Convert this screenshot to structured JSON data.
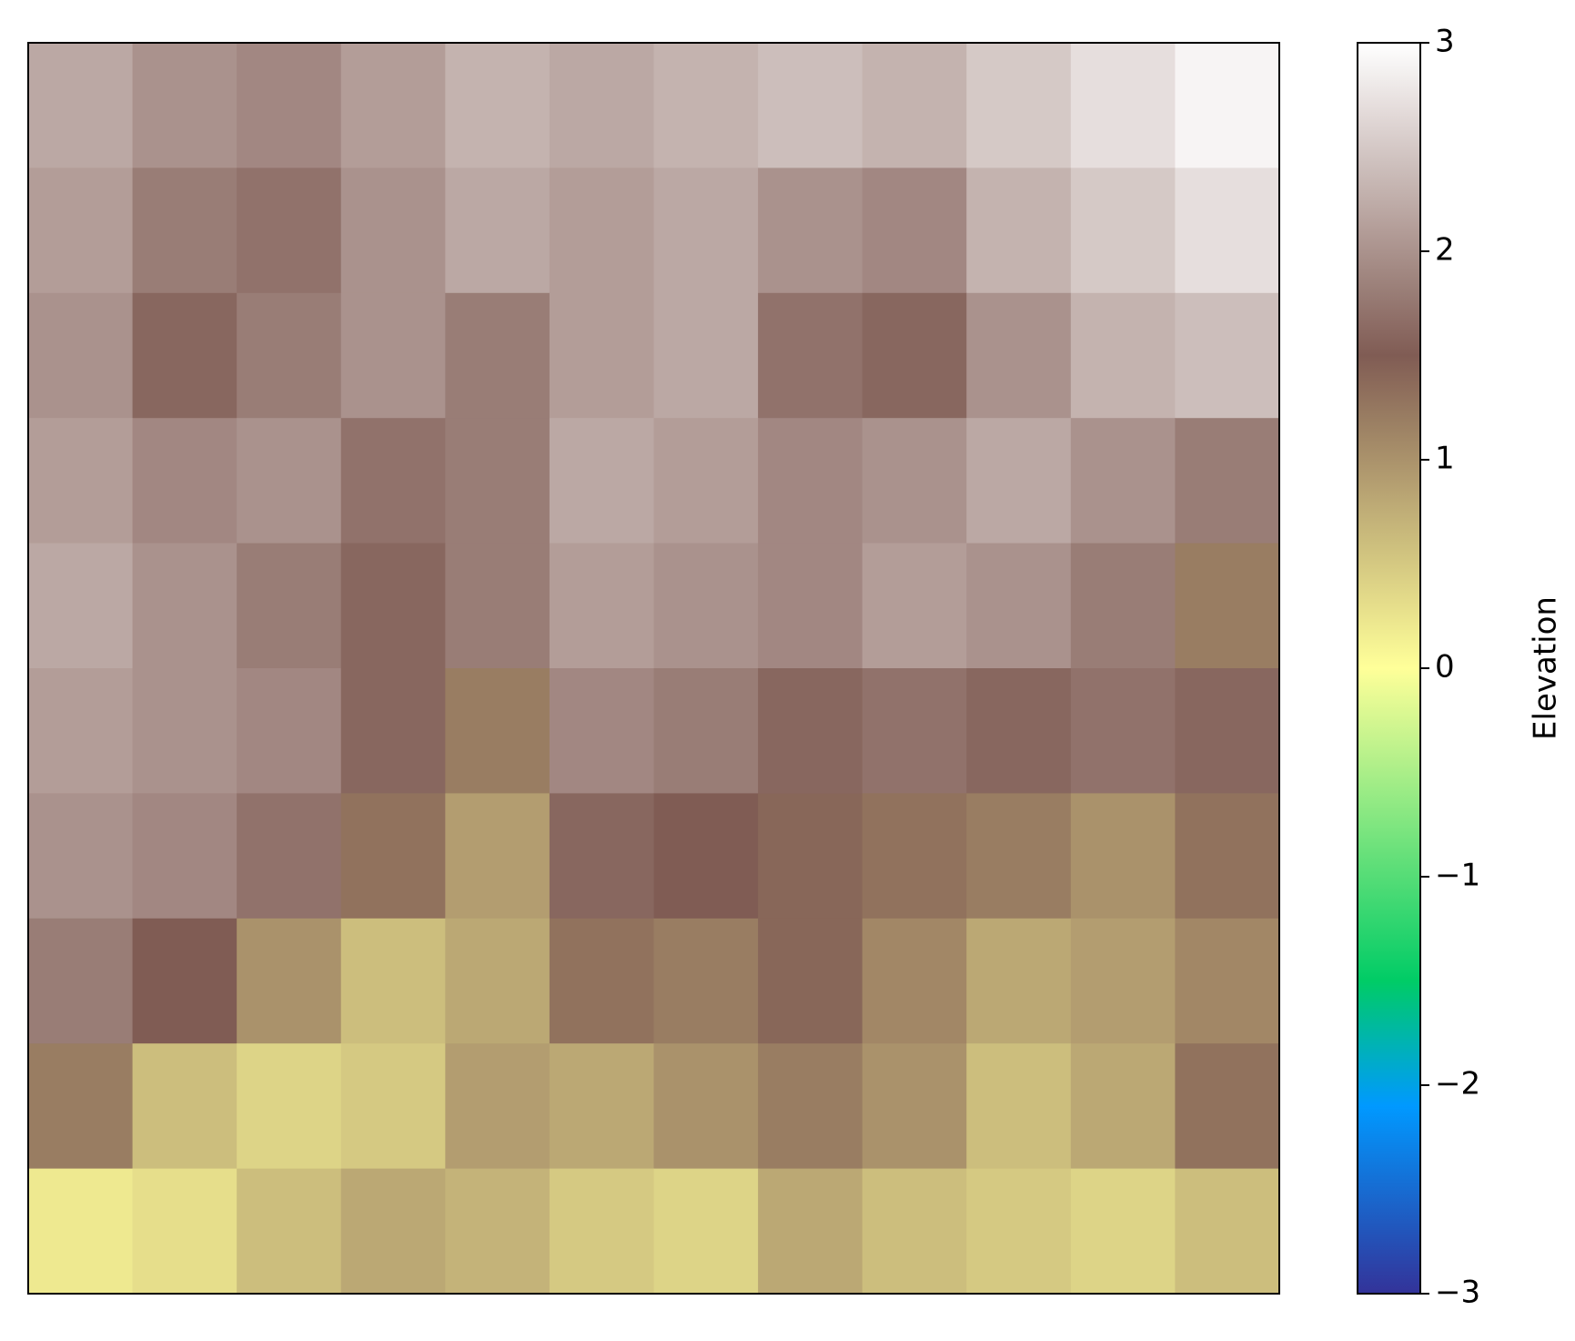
{
  "chart_data": {
    "type": "heatmap",
    "colormap": "terrain",
    "z": [
      [
        2.2,
        2.0,
        1.9,
        2.1,
        2.3,
        2.2,
        2.3,
        2.4,
        2.3,
        2.5,
        2.7,
        2.9
      ],
      [
        2.1,
        1.8,
        1.7,
        2.0,
        2.2,
        2.1,
        2.2,
        2.0,
        1.9,
        2.3,
        2.5,
        2.7
      ],
      [
        2.0,
        1.6,
        1.8,
        2.0,
        1.8,
        2.1,
        2.2,
        1.7,
        1.6,
        2.0,
        2.3,
        2.4
      ],
      [
        2.1,
        1.9,
        2.0,
        1.7,
        1.8,
        2.2,
        2.1,
        1.9,
        2.0,
        2.2,
        2.0,
        1.8
      ],
      [
        2.2,
        2.0,
        1.8,
        1.6,
        1.8,
        2.1,
        2.0,
        1.9,
        2.1,
        2.0,
        1.8,
        1.2
      ],
      [
        2.1,
        2.0,
        1.9,
        1.6,
        1.2,
        1.9,
        1.8,
        1.6,
        1.7,
        1.6,
        1.7,
        1.6
      ],
      [
        2.0,
        1.9,
        1.7,
        1.3,
        0.9,
        1.6,
        1.5,
        1.4,
        1.3,
        1.2,
        1.0,
        1.3
      ],
      [
        1.8,
        1.5,
        1.0,
        0.6,
        0.8,
        1.3,
        1.2,
        1.4,
        1.1,
        0.8,
        0.9,
        1.1
      ],
      [
        1.2,
        0.6,
        0.4,
        0.5,
        0.9,
        0.8,
        1.0,
        1.2,
        1.0,
        0.6,
        0.8,
        1.3
      ],
      [
        0.2,
        0.3,
        0.6,
        0.8,
        0.7,
        0.5,
        0.4,
        0.8,
        0.6,
        0.5,
        0.4,
        0.6
      ]
    ],
    "clim": [
      -3,
      3
    ],
    "cticks": [
      {
        "value": -3,
        "label": "−3"
      },
      {
        "value": -2,
        "label": "−2"
      },
      {
        "value": -1,
        "label": "−1"
      },
      0,
      1,
      2,
      3
    ],
    "colorbar_label": "Elevation"
  }
}
